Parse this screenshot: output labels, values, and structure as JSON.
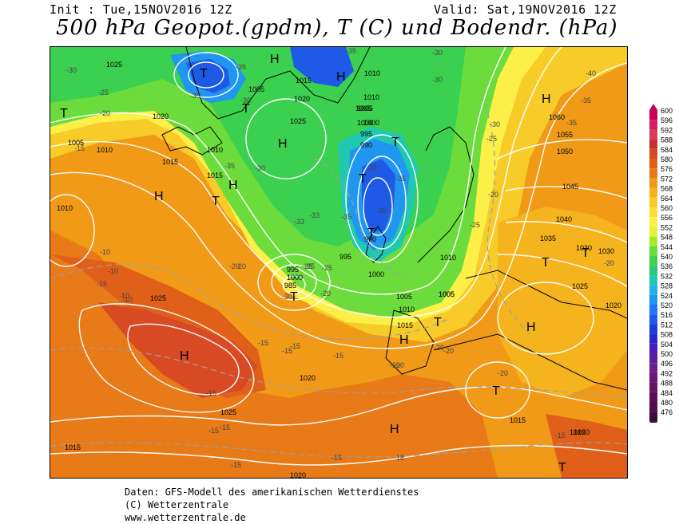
{
  "header": {
    "init": "Init : Tue,15NOV2016 12Z",
    "valid": "Valid: Sat,19NOV2016 12Z",
    "title": "500 hPa Geopot.(gpdm), T (C) und Bodendr. (hPa)"
  },
  "footer": {
    "line1": "Daten: GFS-Modell des amerikanischen Wetterdienstes",
    "line2": "(C) Wetterzentrale",
    "line3": "www.wetterzentrale.de"
  },
  "scale": {
    "values": [
      "600",
      "596",
      "592",
      "588",
      "584",
      "580",
      "576",
      "572",
      "568",
      "564",
      "560",
      "556",
      "552",
      "548",
      "544",
      "540",
      "536",
      "532",
      "528",
      "524",
      "520",
      "516",
      "512",
      "508",
      "504",
      "500",
      "496",
      "492",
      "488",
      "484",
      "480",
      "476"
    ],
    "colors": [
      "#c8005a",
      "#d21e64",
      "#dc3c5a",
      "#c83232",
      "#d74a24",
      "#e0601a",
      "#e87a18",
      "#f09a18",
      "#f5b41e",
      "#f8cc28",
      "#fade3a",
      "#fcf048",
      "#e6f040",
      "#a8e630",
      "#6cdc3c",
      "#3cd050",
      "#28c878",
      "#20c8b0",
      "#20b4e6",
      "#2096f0",
      "#1e78f0",
      "#1e5ae6",
      "#1e3cdc",
      "#2a28c8",
      "#4620b4",
      "#5a1ea0",
      "#6e1e8c",
      "#6e1478",
      "#641464",
      "#5a0f5a",
      "#500a50",
      "#3c0a3c"
    ]
  },
  "map_labels": {
    "highs": [
      "H",
      "H",
      "H",
      "H",
      "H",
      "H",
      "H",
      "H",
      "H",
      "H"
    ],
    "lows": [
      "T",
      "T",
      "T",
      "T",
      "T",
      "T",
      "T",
      "T",
      "T",
      "T",
      "T",
      "T",
      "T"
    ],
    "isobars": [
      "1025",
      "1015",
      "1010",
      "1005",
      "1000",
      "1020",
      "1010",
      "1005",
      "1020",
      "1015",
      "1010",
      "1025",
      "1015",
      "1005",
      "1010",
      "1015",
      "1020",
      "1025",
      "1030",
      "1035",
      "1040",
      "1045",
      "1050",
      "1055",
      "1060",
      "1010",
      "1005",
      "1000",
      "995",
      "990",
      "995",
      "1000",
      "1005",
      "990",
      "985",
      "995",
      "1000",
      "1005",
      "1010",
      "1015",
      "1020",
      "1025",
      "1030",
      "1020",
      "1015",
      "1010",
      "1005",
      "1015",
      "1020",
      "1025",
      "1015"
    ],
    "temps": [
      "-30",
      "-35",
      "-35",
      "-35",
      "-30",
      "-35",
      "-35",
      "-40",
      "-30",
      "-25",
      "-25",
      "-20",
      "-15",
      "-10",
      "-10",
      "-15",
      "-10",
      "-15",
      "-20",
      "-25",
      "-30",
      "-35",
      "-35",
      "-33",
      "-35",
      "-35",
      "-33",
      "-25",
      "-20",
      "-30",
      "-20",
      "-15",
      "-15",
      "-20",
      "-25",
      "-20",
      "-15",
      "-15",
      "-15",
      "-15",
      "-18",
      "-20",
      "-15",
      "-20",
      "-20",
      "-30",
      "-20",
      "-35",
      "-25",
      "-30",
      "-20",
      "-15",
      "-10",
      "-15"
    ]
  }
}
